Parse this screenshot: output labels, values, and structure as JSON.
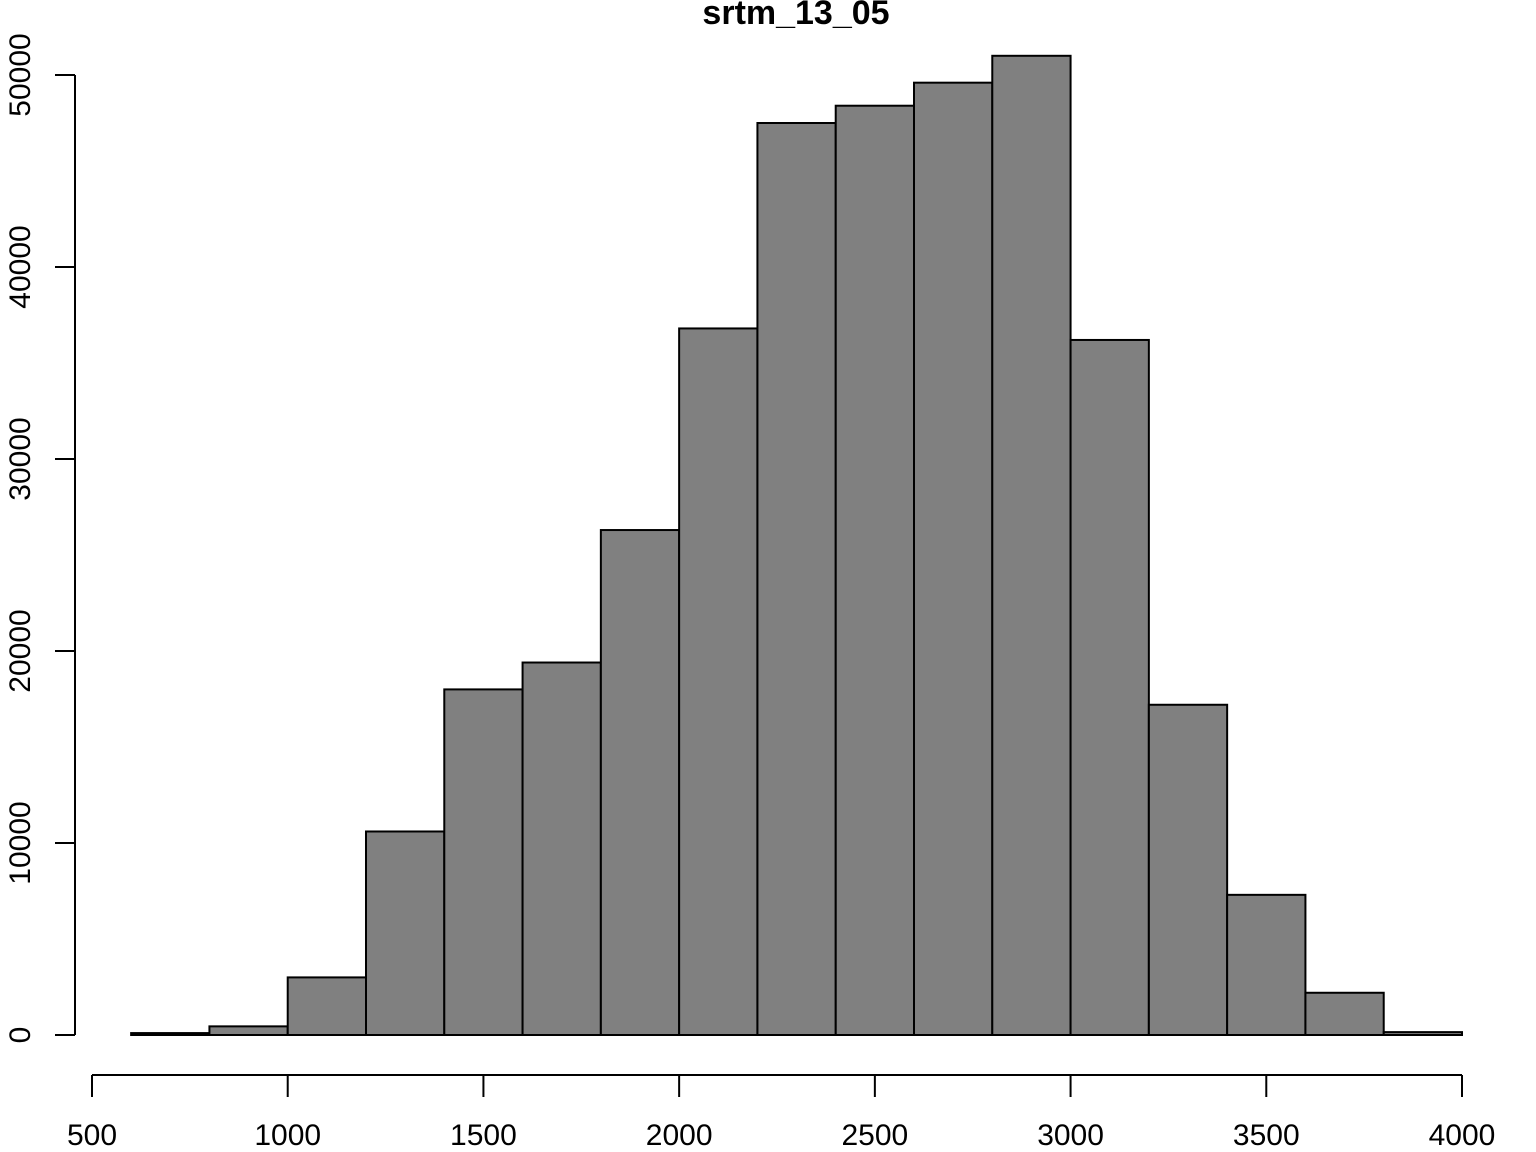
{
  "chart_data": {
    "type": "bar",
    "title": "srtm_13_05",
    "xlabel": "",
    "ylabel": "",
    "bin_edges": [
      600,
      800,
      1000,
      1200,
      1400,
      1600,
      1800,
      2000,
      2200,
      2400,
      2600,
      2800,
      3000,
      3200,
      3400,
      3600,
      3800,
      4000
    ],
    "values": [
      100,
      450,
      3000,
      10600,
      18000,
      19400,
      26300,
      36800,
      47500,
      48400,
      49600,
      51000,
      36200,
      17200,
      7300,
      2200,
      150
    ],
    "xlim": [
      500,
      4000
    ],
    "ylim": [
      0,
      52000
    ],
    "x_ticks": [
      500,
      1000,
      1500,
      2000,
      2500,
      3000,
      3500,
      4000
    ],
    "y_ticks": [
      0,
      10000,
      20000,
      30000,
      40000,
      50000
    ],
    "x_tick_labels": [
      "500",
      "1000",
      "1500",
      "2000",
      "2500",
      "3000",
      "3500",
      "4000"
    ],
    "y_tick_labels": [
      "0",
      "10000",
      "20000",
      "30000",
      "40000",
      "50000"
    ],
    "bar_color": "#808080",
    "grid": false,
    "legend": "none"
  }
}
